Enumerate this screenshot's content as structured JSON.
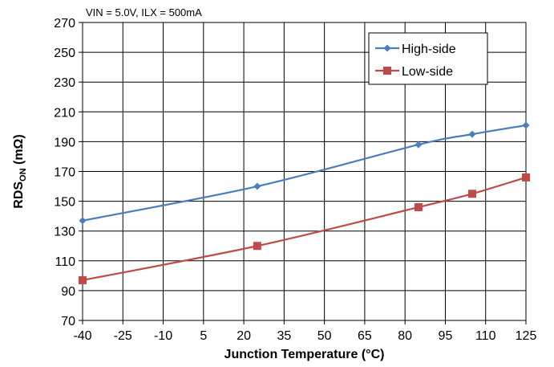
{
  "chart_data": {
    "type": "line",
    "annotation": "VIN =  5.0V, ILX = 500mA",
    "xlabel": "Junction Temperature (°C)",
    "ylabel": {
      "main": "RDS",
      "subscript": "ON",
      "unit": " (mΩ)"
    },
    "x_ticks": [
      "-40",
      "-25",
      "-10",
      "5",
      "20",
      "35",
      "50",
      "65",
      "80",
      "95",
      "110",
      "125"
    ],
    "x_range": [
      -40,
      125
    ],
    "y_ticks": [
      "70",
      "90",
      "110",
      "130",
      "150",
      "170",
      "190",
      "210",
      "230",
      "250",
      "270"
    ],
    "y_range": [
      70,
      270
    ],
    "grid": true,
    "legend_position": "top-right",
    "series": [
      {
        "name": "High-side",
        "color": "#4a7ebb",
        "marker": "diamond",
        "points": [
          [
            -40,
            137
          ],
          [
            25,
            160
          ],
          [
            85,
            188
          ],
          [
            105,
            195
          ],
          [
            125,
            201
          ]
        ]
      },
      {
        "name": "Low-side",
        "color": "#be4b48",
        "marker": "square",
        "points": [
          [
            -40,
            97
          ],
          [
            25,
            120
          ],
          [
            85,
            146
          ],
          [
            105,
            155
          ],
          [
            125,
            166
          ]
        ]
      }
    ]
  }
}
